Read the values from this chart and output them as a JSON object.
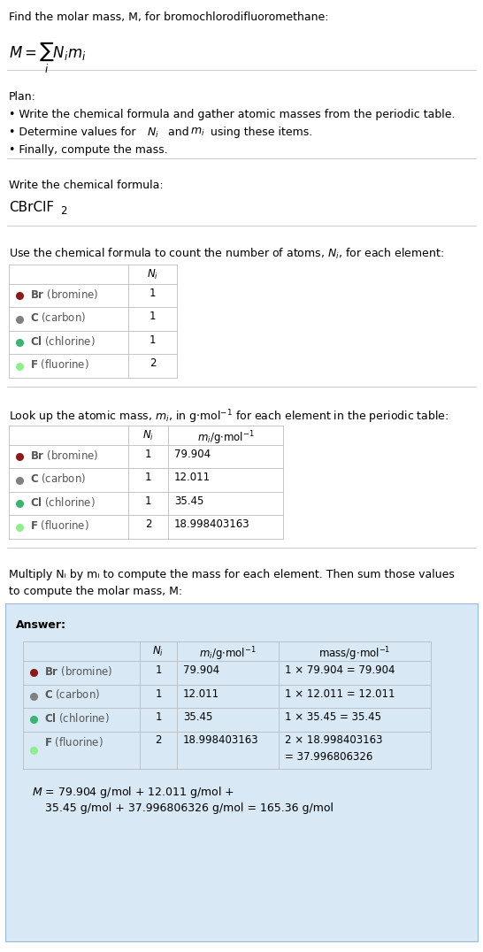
{
  "title_line": "Find the molar mass, M, for bromochlorodifluoromethane:",
  "background_color": "#ffffff",
  "answer_bg_color": "#d8e8f5",
  "plan_header": "Plan:",
  "plan_bullets": [
    "• Write the chemical formula and gather atomic masses from the periodic table.",
    "• Determine values for Nᵢ and mᵢ using these items.",
    "• Finally, compute the mass."
  ],
  "section2_header": "Write the chemical formula:",
  "section3_header": "Use the chemical formula to count the number of atoms, Nᵢ, for each element:",
  "section4_header": "Look up the atomic mass, mᵢ, in g·mol⁻¹ for each element in the periodic table:",
  "section5_header_l1": "Multiply Nᵢ by mᵢ to compute the mass for each element. Then sum those values",
  "section5_header_l2": "to compute the molar mass, M:",
  "answer_label": "Answer:",
  "elements": [
    {
      "symbol": "Br",
      "name": "bromine",
      "color": "#8b1a1a",
      "N": "1",
      "m": "79.904",
      "mass_line1": "1 × 79.904 = 79.904",
      "mass_line2": ""
    },
    {
      "symbol": "C",
      "name": "carbon",
      "color": "#808080",
      "N": "1",
      "m": "12.011",
      "mass_line1": "1 × 12.011 = 12.011",
      "mass_line2": ""
    },
    {
      "symbol": "Cl",
      "name": "chlorine",
      "color": "#3cb371",
      "N": "1",
      "m": "35.45",
      "mass_line1": "1 × 35.45 = 35.45",
      "mass_line2": ""
    },
    {
      "symbol": "F",
      "name": "fluorine",
      "color": "#90ee90",
      "N": "2",
      "m": "18.998403163",
      "mass_line1": "2 × 18.998403163",
      "mass_line2": "= 37.996806326"
    }
  ],
  "final_line1": "M = 79.904 g/mol + 12.011 g/mol +",
  "final_line2": "    35.45 g/mol + 37.996806326 g/mol = 165.36 g/mol",
  "separator_color": "#cccccc",
  "table_line_color": "#bbbbbb",
  "text_color": "#000000",
  "elem_text_color": "#555555"
}
